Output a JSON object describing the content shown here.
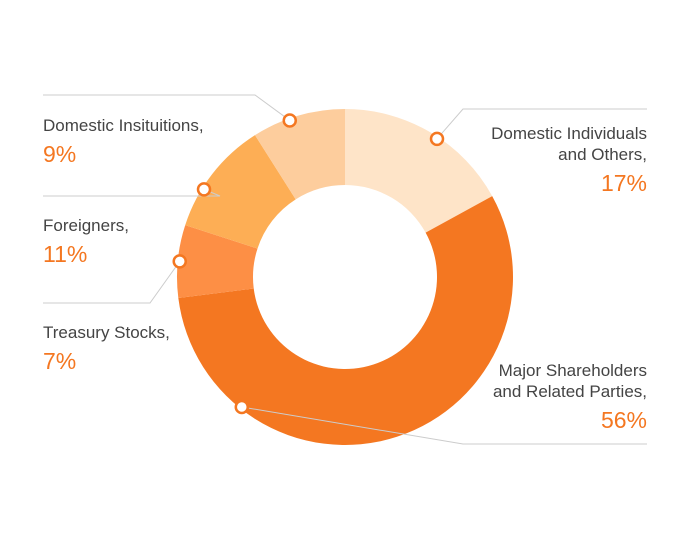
{
  "chart_data": {
    "type": "donut",
    "slices": [
      {
        "label": "Domestic Individuals\nand Others,",
        "value": 17,
        "value_label": "17%",
        "color": "#fee4c8",
        "side": "right"
      },
      {
        "label": "Major Shareholders\nand Related Parties,",
        "value": 56,
        "value_label": "56%",
        "color": "#f47721",
        "side": "right"
      },
      {
        "label": "Treasury Stocks,",
        "value": 7,
        "value_label": "7%",
        "color": "#fd8f45",
        "side": "left"
      },
      {
        "label": "Foreigners,",
        "value": 11,
        "value_label": "11%",
        "color": "#fdae55",
        "side": "left"
      },
      {
        "label": "Domestic Insituitions,",
        "value": 9,
        "value_label": "9%",
        "color": "#fdcd9d",
        "side": "left"
      }
    ],
    "start": "top",
    "direction": "clockwise",
    "marker_color": "#f47721",
    "leader_color": "#cccccc"
  }
}
